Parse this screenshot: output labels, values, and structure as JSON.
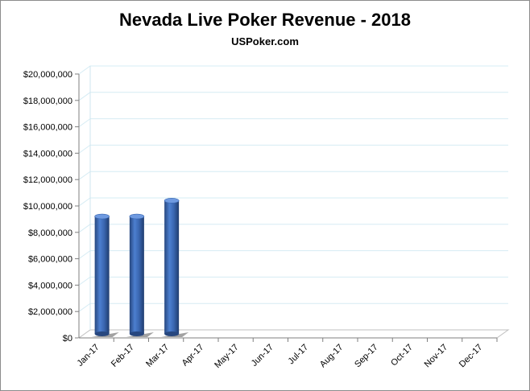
{
  "chart_data": {
    "type": "bar",
    "title": "Nevada Live Poker Revenue - 2018",
    "subtitle": "USPoker.com",
    "xlabel": "",
    "ylabel": "",
    "categories": [
      "Jan-17",
      "Feb-17",
      "Mar-17",
      "Apr-17",
      "May-17",
      "Jun-17",
      "Jul-17",
      "Aug-17",
      "Sep-17",
      "Oct-17",
      "Nov-17",
      "Dec-17"
    ],
    "values": [
      8900000,
      8900000,
      10100000,
      null,
      null,
      null,
      null,
      null,
      null,
      null,
      null,
      null
    ],
    "yticks": [
      "$0",
      "$2,000,000",
      "$4,000,000",
      "$6,000,000",
      "$8,000,000",
      "$10,000,000",
      "$12,000,000",
      "$14,000,000",
      "$16,000,000",
      "$18,000,000",
      "$20,000,000"
    ],
    "ylim": [
      0,
      20000000
    ],
    "grid": true,
    "bar_color": "#3a66b0",
    "grid_color": "#d6ecf4"
  }
}
